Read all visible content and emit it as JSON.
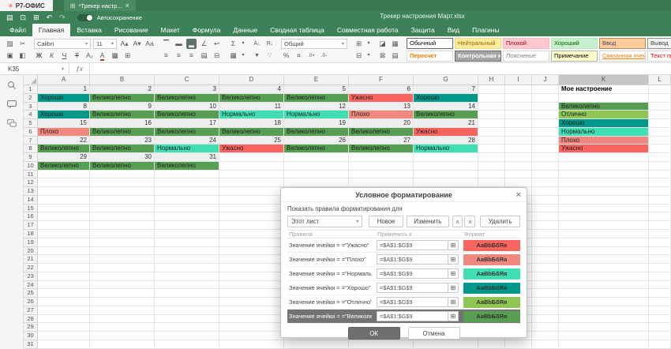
{
  "window": {
    "app_name": "Р7-ОФИС",
    "doc_tab": "*Трекер настр...",
    "title": "Трекер настроения Март.xlsx",
    "autosave_label": "Автосохранение",
    "menu_tabs": [
      "Файл",
      "Главная",
      "Вставка",
      "Рисование",
      "Макет",
      "Формула",
      "Данные",
      "Сводная таблица",
      "Совместная работа",
      "Защита",
      "Вид",
      "Плагины"
    ],
    "active_tab": "Главная"
  },
  "toolbar": {
    "font_name": "Calibri",
    "font_size": "11",
    "number_format": "Общий",
    "styles": [
      {
        "label": "Обычный",
        "bg": "#ffffff",
        "color": "#000000",
        "border": "#6a6a6a"
      },
      {
        "label": "Нейтральный",
        "bg": "#FFEB9C",
        "color": "#9C6500",
        "border": "#ecd98c"
      },
      {
        "label": "Плохой",
        "bg": "#FFC7CE",
        "color": "#9C0006",
        "border": "#f2bac3"
      },
      {
        "label": "Хороший",
        "bg": "#C6EFCE",
        "color": "#006100",
        "border": "#b5e4bf"
      },
      {
        "label": "Ввод",
        "bg": "#FFCC99",
        "color": "#3F3F76",
        "border": "#b08a5e"
      },
      {
        "label": "Вывод",
        "bg": "#F2F2F2",
        "color": "#3F3F3F",
        "border": "#8f8f8f"
      },
      {
        "label": "Пересчет",
        "bg": "#ffffff",
        "color": "#FA7D00",
        "border": "#d9d9d9",
        "bold": true
      },
      {
        "label": "Контрольная я",
        "bg": "#A5A5A5",
        "color": "#ffffff",
        "border": "#6e6e6e",
        "bold": true
      },
      {
        "label": "Пояснение",
        "bg": "#ffffff",
        "color": "#7F7F7F",
        "border": "#d9d9d9",
        "italic": true
      },
      {
        "label": "Примечание",
        "bg": "#FFFFCC",
        "color": "#000000",
        "border": "#B2B2B2"
      },
      {
        "label": "Связанная ячей",
        "bg": "#ffffff",
        "color": "#FA7D00",
        "border": "#d9d9d9",
        "underline": true
      },
      {
        "label": "Текст предупре",
        "bg": "#ffffff",
        "color": "#FF0000",
        "border": "#d9d9d9"
      }
    ]
  },
  "formula_bar": {
    "name_box": "K35"
  },
  "grid": {
    "columns": [
      "A",
      "B",
      "C",
      "D",
      "E",
      "F",
      "G",
      "H",
      "I",
      "J",
      "K",
      "L"
    ],
    "selected_column": "K",
    "row_count": 31,
    "day_rows": {
      "1": [
        1,
        2,
        3,
        4,
        5,
        6,
        7
      ],
      "3": [
        8,
        9,
        10,
        11,
        12,
        13,
        14
      ],
      "5": [
        15,
        16,
        17,
        18,
        19,
        20,
        21
      ],
      "7": [
        22,
        23,
        24,
        25,
        26,
        27,
        28
      ],
      "9": [
        29,
        30,
        31
      ]
    },
    "mood_rows": {
      "2": [
        "Хорошо",
        "Великолепно",
        "Великолепно",
        "Великолепно",
        "Великолепно",
        "Ужасно",
        "Хорошо"
      ],
      "4": [
        "Хорошо",
        "Великолепно",
        "Великолепно",
        "Нормально",
        "Нормально",
        "Плохо",
        "Великолепно"
      ],
      "6": [
        "Плохо",
        "Великолепно",
        "Великолепно",
        "Великолепно",
        "Великолепно",
        "Великолепно",
        "Ужасно"
      ],
      "8": [
        "Великолепно",
        "Великолепно",
        "Нормально",
        "Ужасно",
        "Великолепно",
        "Великолепно",
        "Нормально"
      ],
      "10": [
        "Великолепно",
        "Великолепно",
        "Великолепно"
      ]
    },
    "mood_colors": {
      "Великолепно": "#569E52",
      "Отлично": "#8FC653",
      "Хорошо": "#00988A",
      "Нормально": "#40DFB3",
      "Плохо": "#F1887F",
      "Ужасно": "#F9655E"
    },
    "k_column": {
      "header": "Мое настроение",
      "values_start_row": 3,
      "values": [
        "Великолепно",
        "Отлично",
        "Хорошо",
        "Нормально",
        "Плохо",
        "Ужасно"
      ]
    }
  },
  "dialog": {
    "title": "Условное форматирование",
    "show_rules_label": "Показать правила форматирования для",
    "scope": "Этот лист",
    "buttons": {
      "new": "Новое",
      "edit": "Изменить",
      "delete": "Удалить",
      "ok": "ОК",
      "cancel": "Отмена"
    },
    "columns": [
      "Правила",
      "Применить к",
      "Формат"
    ],
    "preview_text": "AaBbБбЯя",
    "rules": [
      {
        "rule": "Значение ячейки = =\"Ужасно\"",
        "range": "=$A$1:$G$9",
        "color": "#F9655E"
      },
      {
        "rule": "Значение ячейки = =\"Плохо\"",
        "range": "=$A$1:$G$9",
        "color": "#F1887F"
      },
      {
        "rule": "Значение ячейки = =\"Нормально\"",
        "range": "=$A$1:$G$9",
        "color": "#40DFB3"
      },
      {
        "rule": "Значение ячейки = =\"Хорошо\"",
        "range": "=$A$1:$G$9",
        "color": "#00988A"
      },
      {
        "rule": "Значение ячейки = =\"Отлично\"",
        "range": "=$A$1:$G$9",
        "color": "#8FC653"
      },
      {
        "rule": "Значение ячейки = =\"Великолепно\"",
        "range": "=$A$1:$G$9",
        "color": "#569E52",
        "selected": true
      }
    ]
  },
  "icons": {
    "logo": "✳",
    "sheet": "⊞",
    "close": "×",
    "save": "▤",
    "print": "⊡",
    "quick_print": "⊞",
    "undo": "↶",
    "redo": "↷",
    "paste": "▨",
    "cut": "✂",
    "copy": "▣",
    "format_painter": "◧",
    "grow_font": "A▴",
    "shrink_font": "A▾",
    "change_case": "Aa",
    "bold": "Ж",
    "italic": "К",
    "underline": "Ч",
    "strike": "Ŧ",
    "subscript": "A₂",
    "font_color": "А",
    "fill_color": "▩",
    "borders": "⊞",
    "valign_top": "▔",
    "valign_mid": "▬",
    "valign_bottom": "▂",
    "orientation": "∠",
    "wrap": "↩",
    "align_left": "≡",
    "align_center": "≡",
    "align_right": "≡",
    "justify": "▤",
    "merge": "⊟",
    "sum": "Σ",
    "named_ranges": "▦",
    "sort_az": "А↓",
    "sort_za": "Я↓",
    "filter": "▼",
    "clear_filter": "▽",
    "percent": "%",
    "currency": "¤",
    "dec_inc": ".0+",
    "dec_dec": ".0-",
    "insert_cells": "⊞",
    "delete_cells": "⊟",
    "clear": "◪",
    "cond_format": "▦",
    "paint": "⊠",
    "format_table": "▤",
    "chevron": "▾",
    "up": "∧",
    "down": "∨",
    "grid_select": "⊞",
    "fx": "ƒx"
  }
}
